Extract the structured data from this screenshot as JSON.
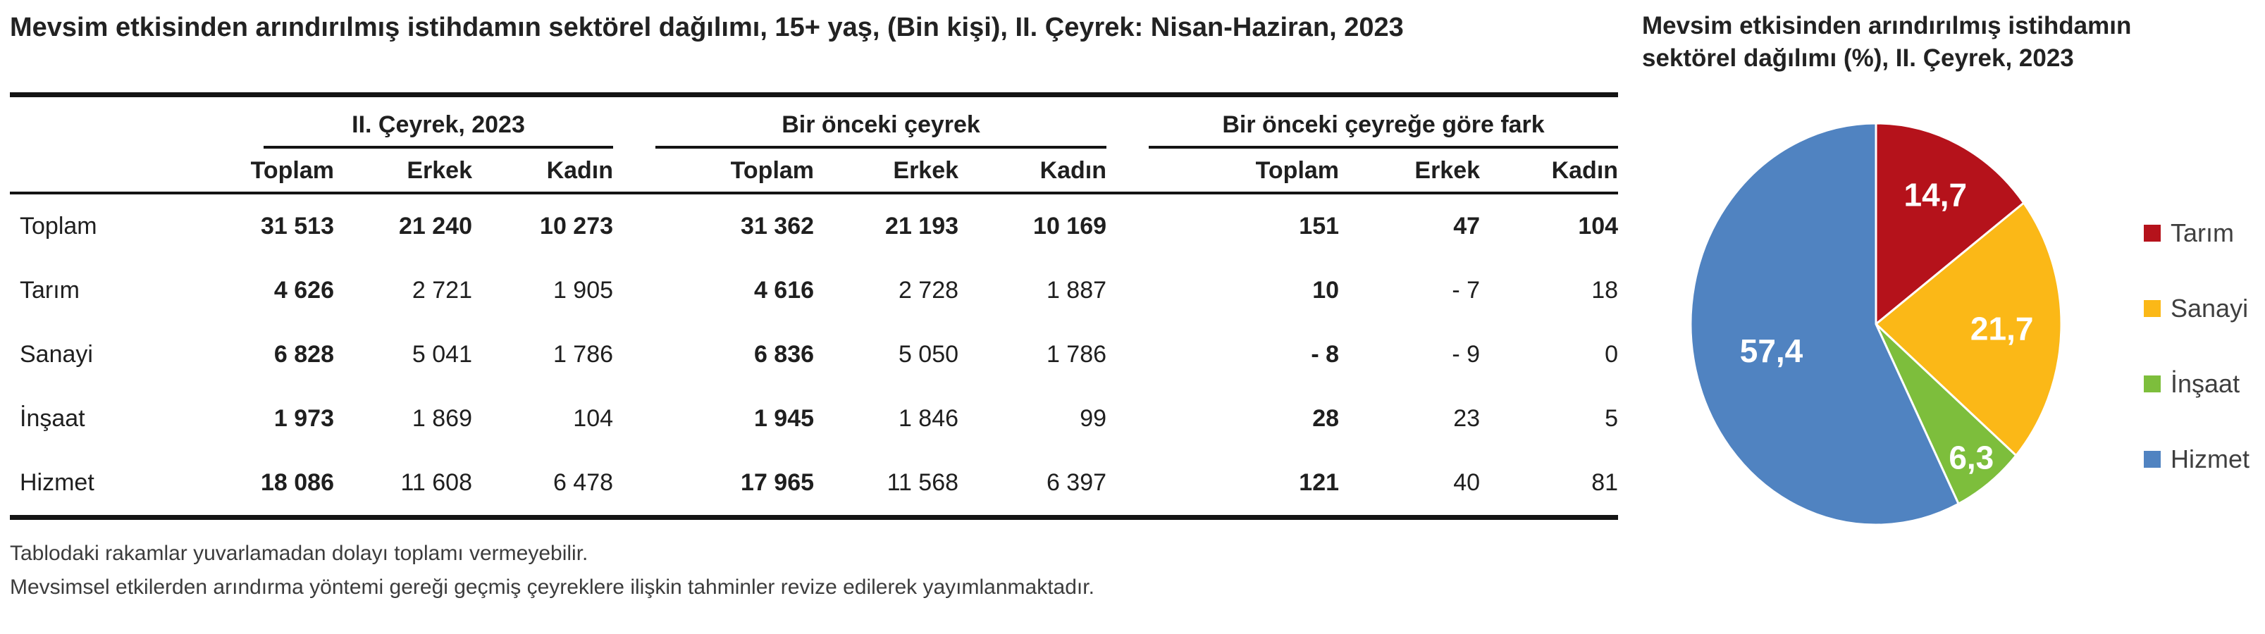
{
  "left_panel": {
    "title": "Mevsim etkisinden arındırılmış istihdamın sektörel dağılımı, 15+ yaş, (Bin kişi), II. Çeyrek: Nisan-Haziran, 2023",
    "table": {
      "group_headers": [
        "II. Çeyrek, 2023",
        "Bir önceki çeyrek",
        "Bir önceki çeyreğe göre fark"
      ],
      "sub_headers": [
        "Toplam",
        "Erkek",
        "Kadın"
      ],
      "rows": [
        {
          "label": "Toplam",
          "values": [
            "31 513",
            "21 240",
            "10 273",
            "31 362",
            "21 193",
            "10 169",
            "151",
            "47",
            "104"
          ]
        },
        {
          "label": "Tarım",
          "values": [
            "4 626",
            "2 721",
            "1 905",
            "4 616",
            "2 728",
            "1 887",
            "10",
            "- 7",
            "18"
          ]
        },
        {
          "label": "Sanayi",
          "values": [
            "6 828",
            "5 041",
            "1 786",
            "6 836",
            "5 050",
            "1 786",
            "- 8",
            "- 9",
            "0"
          ]
        },
        {
          "label": "İnşaat",
          "values": [
            "1 973",
            "1 869",
            "104",
            "1 945",
            "1 846",
            "99",
            "28",
            "23",
            "5"
          ]
        },
        {
          "label": "Hizmet",
          "values": [
            "18 086",
            "11 608",
            "6 478",
            "17 965",
            "11 568",
            "6 397",
            "121",
            "40",
            "81"
          ]
        }
      ]
    },
    "footnotes": [
      "Tablodaki rakamlar yuvarlamadan dolayı toplamı vermeyebilir.",
      "Mevsimsel etkilerden arındırma yöntemi gereği geçmiş çeyreklere ilişkin tahminler revize edilerek yayımlanmaktadır."
    ]
  },
  "right_panel": {
    "title_lines": [
      "Mevsim etkisinden arındırılmış istihdamın",
      "sektörel dağılımı (%), II. Çeyrek, 2023"
    ]
  },
  "chart_data": {
    "type": "pie",
    "title": "Mevsim etkisinden arındırılmış istihdamın sektörel dağılımı (%), II. Çeyrek, 2023",
    "categories": [
      "Tarım",
      "Sanayi",
      "İnşaat",
      "Hizmet"
    ],
    "values": [
      14.7,
      21.7,
      6.3,
      57.4
    ],
    "value_labels": [
      "14,7",
      "21,7",
      "6,3",
      "57,4"
    ],
    "colors": [
      "#B5121B",
      "#FBB817",
      "#7DBE3C",
      "#5083C1"
    ],
    "start_angle": "12-oclock",
    "direction": "clockwise",
    "legend_position": "right"
  }
}
